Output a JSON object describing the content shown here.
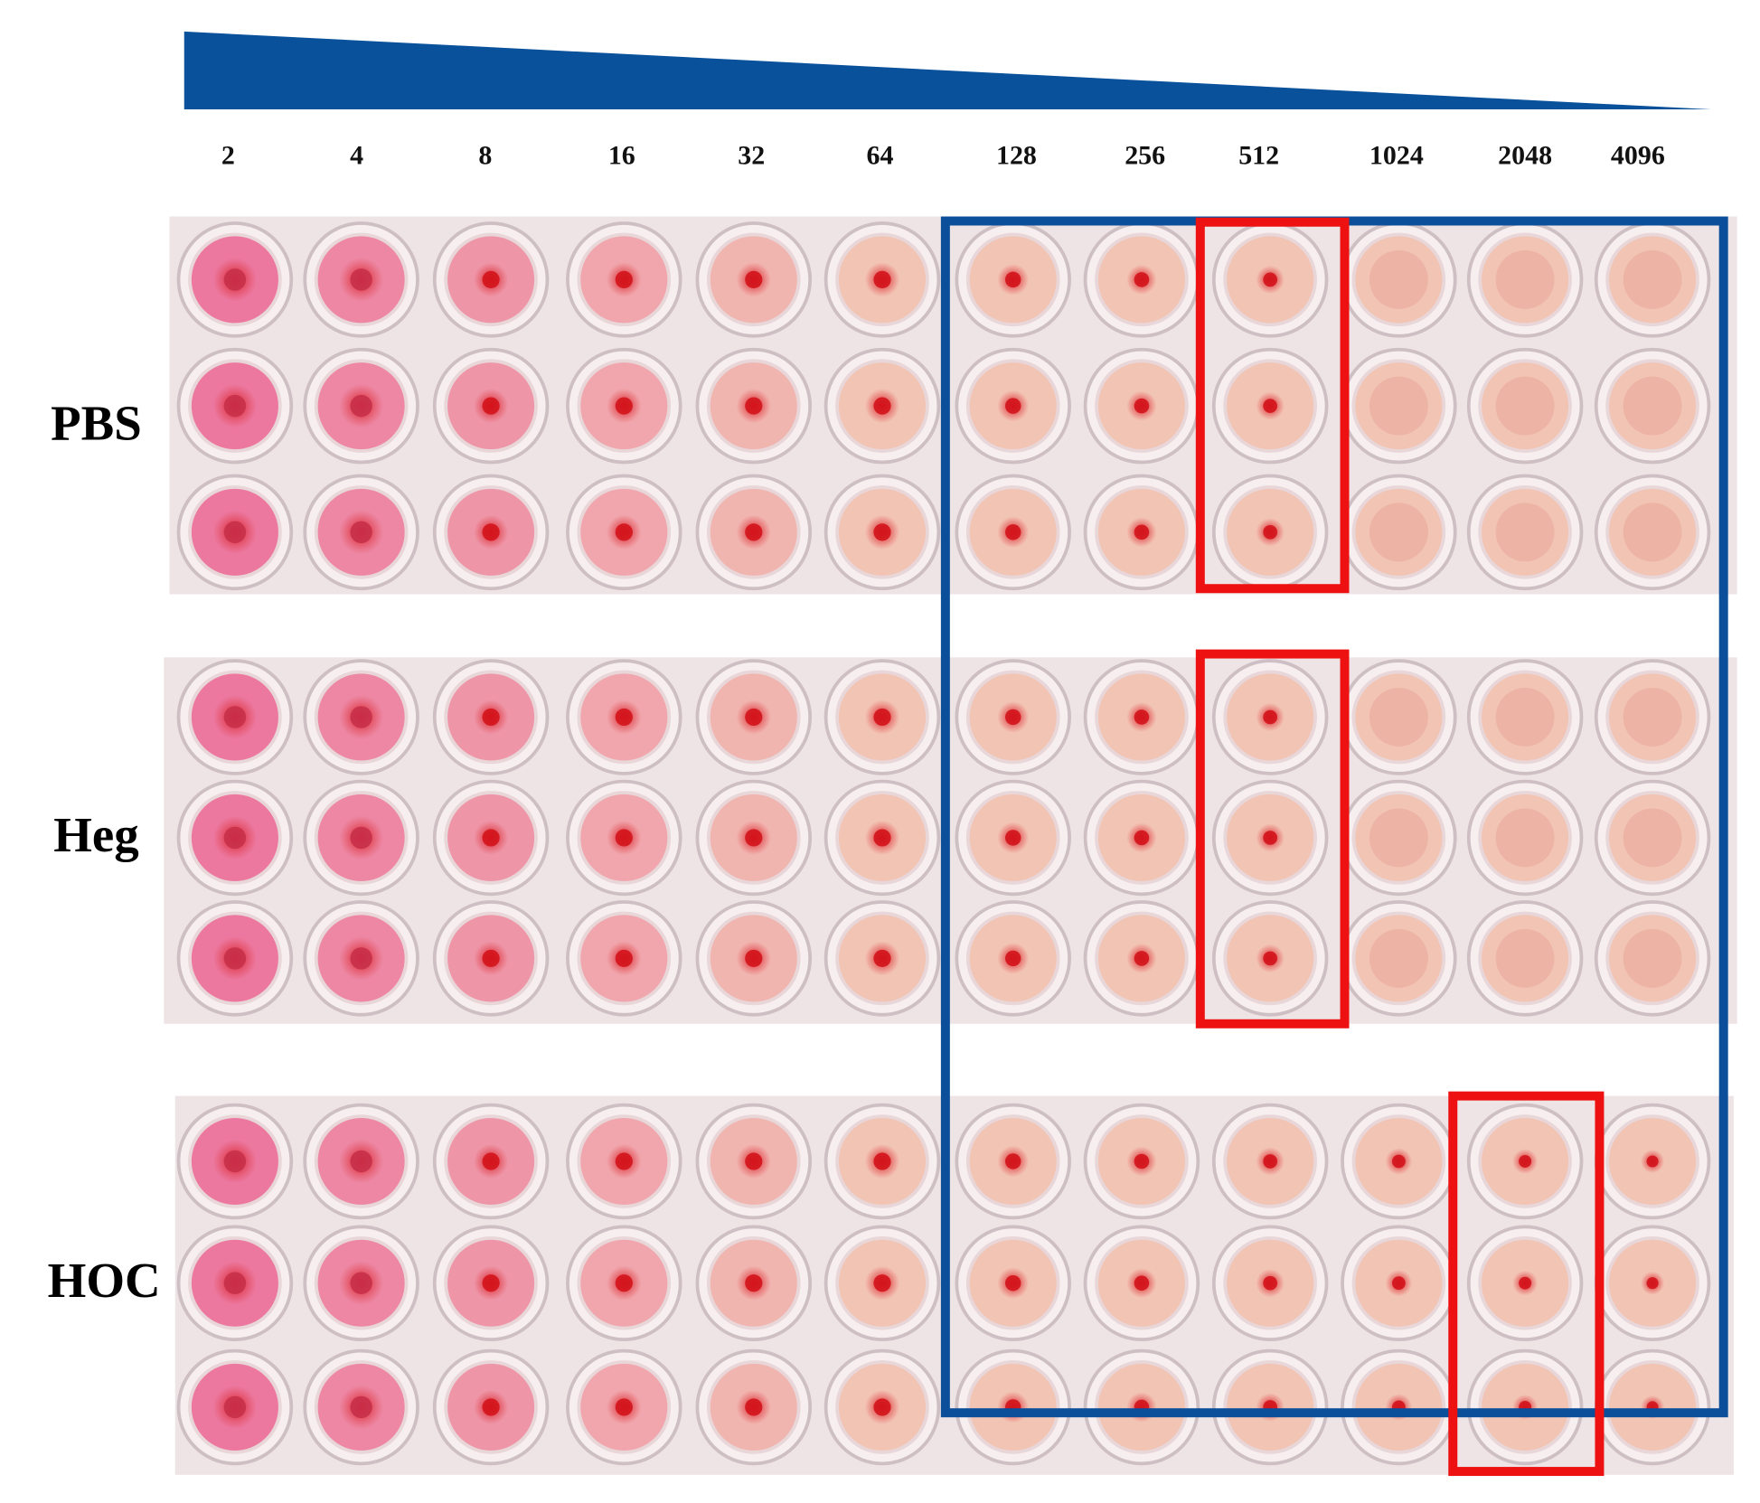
{
  "dilutions": [
    "2",
    "4",
    "8",
    "16",
    "32",
    "64",
    "128",
    "256",
    "512",
    "1024",
    "2048",
    "4096"
  ],
  "groups": [
    {
      "label": "PBS"
    },
    {
      "label": "Heg"
    },
    {
      "label": "HOC"
    }
  ]
}
